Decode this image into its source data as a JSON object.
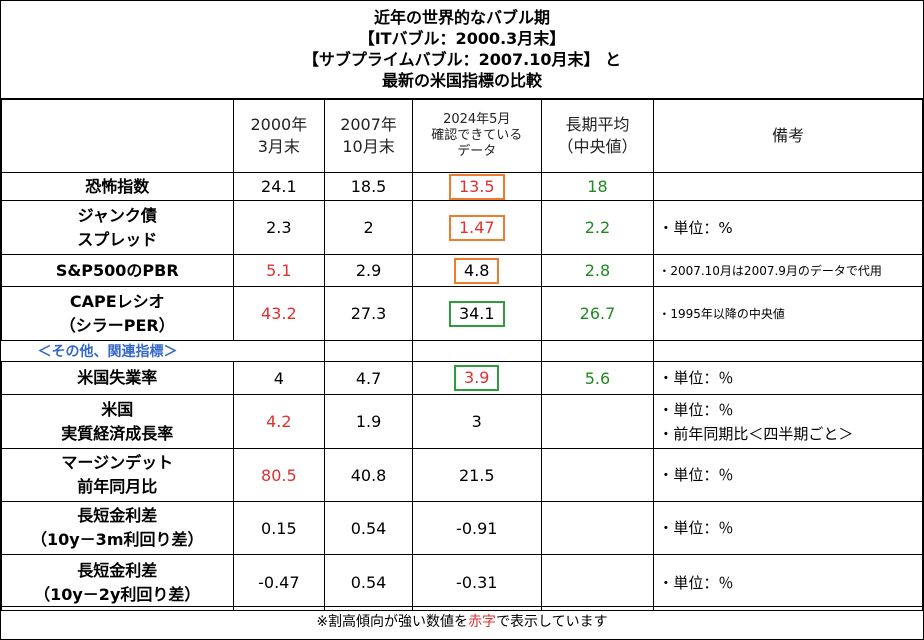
{
  "title": {
    "line1": "近年の世界的なバブル期",
    "line2": "【ITバブル：2000.3月末】",
    "line3": "【サブプライムバブル：2007.10月末】 と",
    "line4": "最新の米国指標の比較"
  },
  "headers": {
    "col1": [
      "2000年",
      "3月末"
    ],
    "col2": [
      "2007年",
      "10月末"
    ],
    "col3": [
      "2024年5月",
      "確認できている",
      "データ"
    ],
    "col4": [
      "長期平均",
      "（中央値）"
    ],
    "col5": "備考"
  },
  "rows": [
    {
      "label": [
        "恐怖指数"
      ],
      "v2000": "24.1",
      "v2007": "18.5",
      "v2024": "13.5",
      "avg": "18",
      "note": []
    },
    {
      "label": [
        "ジャンク債",
        "スプレッド"
      ],
      "v2000": "2.3",
      "v2007": "2",
      "v2024": "1.47",
      "avg": "2.2",
      "note": [
        "・単位：%"
      ]
    },
    {
      "label": [
        "S&P500のPBR"
      ],
      "v2000": "5.1",
      "v2007": "2.9",
      "v2024": "4.8",
      "avg": "2.8",
      "note": [
        "・2007.10月は2007.9月のデータで代用"
      ]
    },
    {
      "label": [
        "CAPEレシオ",
        "（シラーPER）"
      ],
      "v2000": "43.2",
      "v2007": "27.3",
      "v2024": "34.1",
      "avg": "26.7",
      "note": [
        "・1995年以降の中央値"
      ]
    },
    {
      "label": [
        "米国失業率"
      ],
      "v2000": "4",
      "v2007": "4.7",
      "v2024": "3.9",
      "avg": "5.6",
      "note": [
        "・単位：％"
      ]
    },
    {
      "label": [
        "米国",
        "実質経済成長率"
      ],
      "v2000": "4.2",
      "v2007": "1.9",
      "v2024": "3",
      "avg": "",
      "note": [
        "・単位：％",
        "・前年同期比＜四半期ごと＞"
      ]
    },
    {
      "label": [
        "マージンデット",
        "前年同月比"
      ],
      "v2000": "80.5",
      "v2007": "40.8",
      "v2024": "21.5",
      "avg": "",
      "note": [
        "・単位：％"
      ]
    },
    {
      "label": [
        "長短金利差",
        "（10y－3m利回り差）"
      ],
      "v2000": "0.15",
      "v2007": "0.54",
      "v2024": "-0.91",
      "avg": "",
      "note": [
        "・単位：％"
      ]
    },
    {
      "label": [
        "長短金利差",
        "（10y－2y利回り差）"
      ],
      "v2000": "-0.47",
      "v2007": "0.54",
      "v2024": "-0.31",
      "avg": "",
      "note": [
        "・単位：％"
      ]
    }
  ],
  "section_label": "＜その他、関連指標＞",
  "footer": {
    "prefix": "※割高傾向が強い数値を",
    "red_word": "赤字",
    "suffix": "で表示しています"
  },
  "colors": {
    "red": "#e03030",
    "green": "#1f8a1f",
    "orange_box": "#ef7b2c",
    "green_box": "#2e9c3e",
    "section": "#3568c9"
  }
}
